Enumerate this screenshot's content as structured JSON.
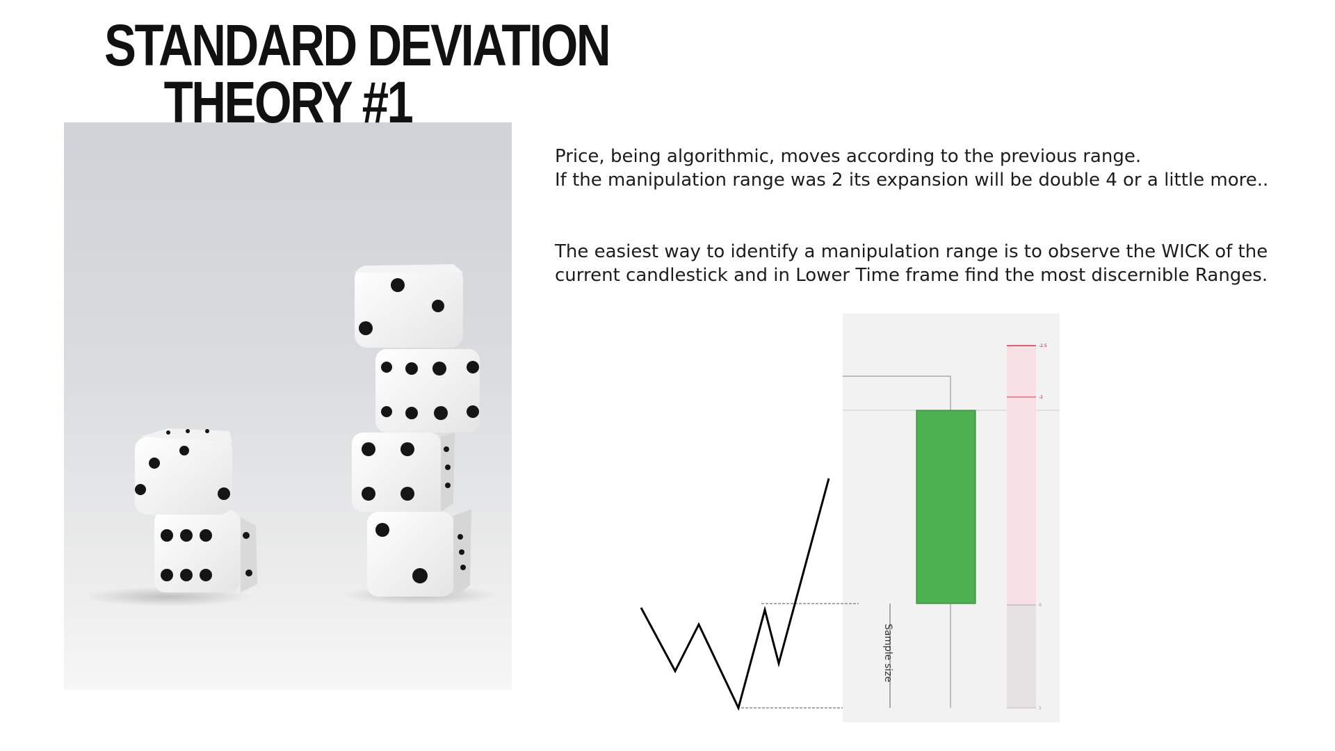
{
  "title": {
    "line1": "STANDARD DEVIATION",
    "line2": "THEORY #1"
  },
  "paragraphs": [
    {
      "line1": "Price, being algorithmic, moves according to the previous range.",
      "line2": "If the manipulation range was 2 its expansion will be double 4 or a little more.."
    },
    {
      "line1": "The easiest way to identify a manipulation range is to observe the WICK of the",
      "line2": "current candlestick and in Lower Time frame find the most discernible Ranges."
    }
  ],
  "diagram": {
    "sample_label": "Sample size",
    "scale_labels": [
      "-2.5",
      "-2",
      "0",
      "1"
    ],
    "candle_color": "#4caf50",
    "level_color": "#d6304a"
  },
  "photo": {
    "subject": "stacked white dice"
  }
}
